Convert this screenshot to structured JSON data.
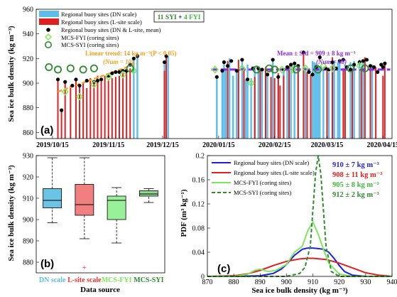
{
  "colors": {
    "dn": "#5bbde8",
    "lsite": "#e02020",
    "mean": "#000000",
    "fyi": "#7fe85a",
    "syi": "#2e8b2e",
    "trend": "#f5a020",
    "overall": "#8a2be2",
    "fyi_text": "#3cb83c"
  },
  "panel_a": {
    "label": "(a)",
    "ylabel": "Sea ice bulk density (kg m⁻³)",
    "yticks": [
      "860",
      "880",
      "900",
      "920",
      "940",
      "960"
    ],
    "xticks": [
      "2019/10/15",
      "2019/11/15",
      "2019/12/15",
      "2020/01/15",
      "2020/02/15",
      "2020/03/15",
      "2020/04/15"
    ],
    "legend": [
      "Regional buoy sites (DN scale)",
      "Regional buoy sites (L-site scale)",
      "Regional buoy sites (DN & L-site, mean)",
      "MCS-FYI (coring sites)",
      "MCS-SYI (coring sites)"
    ],
    "box_label": {
      "syi": "11 SYI",
      "plus": " + ",
      "fyi": "4 FYI"
    },
    "trend_text": "Linear trend: 14 kg m⁻³(P < 0.05)",
    "trend_num": "(Num = 10)",
    "mean_text": "Mean ± Std = 909 ± 8 kg m⁻³",
    "mean_num": "(Num = 68)"
  },
  "panel_b": {
    "label": "(b)",
    "ylabel": "Sea ice bulk density (kg m⁻³)",
    "xlabel": "Data source",
    "yticks": [
      "880",
      "890",
      "900",
      "910",
      "920",
      "930"
    ],
    "categories": [
      "DN scale",
      "L-site scale",
      "MCS-FYI",
      "MCS-SYI"
    ]
  },
  "panel_c": {
    "label": "(c)",
    "ylabel": "PDF (m³ kg⁻¹)",
    "xlabel": "Sea ice bulk density (kg m⁻³)",
    "xticks": [
      "870",
      "880",
      "890",
      "900",
      "910",
      "920",
      "930",
      "940"
    ],
    "yticks": [
      "0",
      "0.04",
      "0.08",
      "0.12",
      "0.16",
      "0.2"
    ],
    "legend": [
      "Regional buoy sites (DN scale)",
      "Regional buoy sites (L-site scale)",
      "MCS-FYI (coring sites)",
      "MCS-SYI (coring sites)"
    ],
    "stats": [
      "910 ± 7 kg m⁻³",
      "908 ± 11 kg m⁻³",
      "905 ± 8 kg m⁻³",
      "912 ± 2 kg m⁻³"
    ]
  },
  "chart_data": [
    {
      "type": "bar",
      "panel": "a",
      "ylim": [
        855,
        960
      ],
      "x_dates": [
        "2019-10-15",
        "2019-11-15",
        "2019-12-15",
        "2020-01-15",
        "2020-02-15",
        "2020-03-15",
        "2020-04-15"
      ],
      "series": [
        {
          "name": "Regional buoy sites (DN scale)",
          "x_days": [
            50,
            52,
            67,
            69,
            96,
            99,
            100,
            101,
            103,
            105,
            107,
            110,
            112,
            113,
            115,
            117,
            119,
            121,
            124,
            127,
            130,
            133,
            135,
            137,
            139,
            141,
            145,
            149,
            150,
            151,
            152,
            153,
            155,
            158,
            160,
            161,
            163,
            164,
            167,
            170,
            172,
            175,
            177,
            182
          ],
          "values": [
            920,
            922,
            918,
            922,
            905,
            910,
            917,
            912,
            920,
            906,
            910,
            919,
            903,
            915,
            904,
            913,
            912,
            911,
            907,
            919,
            905,
            911,
            913,
            915,
            916,
            914,
            913,
            918,
            917,
            916,
            915,
            913,
            911,
            909,
            917,
            918,
            917,
            916,
            915,
            917,
            918,
            919,
            917,
            915
          ]
        },
        {
          "name": "Regional buoy sites (L-site scale)",
          "x_days": [
            8,
            10,
            12,
            15,
            18,
            20,
            22,
            24,
            26,
            28,
            30,
            32,
            34,
            36,
            38,
            40,
            42,
            44,
            46,
            48,
            67,
            68,
            102,
            108,
            111,
            117,
            120,
            123,
            126,
            128,
            130,
            131,
            133,
            136,
            141,
            144,
            146,
            148,
            157,
            160,
            166,
            167,
            171,
            176,
            178,
            181,
            184,
            188,
            189
          ],
          "values": [
            903,
            878,
            900,
            898,
            904,
            897,
            900,
            896,
            904,
            902,
            906,
            903,
            906,
            902,
            904,
            905,
            906,
            908,
            909,
            912,
            910,
            922,
            918,
            919,
            913,
            905,
            911,
            913,
            905,
            904,
            908,
            898,
            906,
            914,
            913,
            925,
            909,
            907,
            913,
            921,
            912,
            911,
            911,
            911,
            921,
            914,
            913,
            906,
            916
          ]
        },
        {
          "name": "Regional buoy sites (DN & L-site, mean)",
          "x_days": [
            8,
            10,
            12,
            16,
            18,
            20,
            24,
            28,
            30,
            32,
            36,
            38,
            40,
            42,
            44,
            46,
            48,
            50,
            52,
            67,
            68,
            96,
            99,
            100,
            102,
            104,
            107,
            110,
            113,
            116,
            119,
            121,
            124,
            127,
            130,
            133,
            135,
            137,
            139,
            141,
            144,
            147,
            149,
            151,
            153,
            156,
            158,
            160,
            162,
            164,
            166,
            168,
            170,
            172,
            175,
            177,
            179,
            181,
            183,
            185,
            187,
            188,
            189
          ],
          "values": [
            903,
            878,
            901,
            898,
            903,
            898,
            902,
            901,
            902,
            903,
            906,
            908,
            909,
            909,
            910,
            910,
            915,
            920,
            922,
            917,
            922,
            905,
            910,
            917,
            914,
            918,
            910,
            919,
            903,
            912,
            912,
            911,
            907,
            919,
            905,
            911,
            913,
            915,
            916,
            914,
            925,
            909,
            907,
            913,
            921,
            912,
            911,
            917,
            912,
            918,
            919,
            913,
            911,
            915,
            917,
            918,
            919,
            914,
            913,
            909,
            915,
            913,
            916
          ]
        },
        {
          "name": "MCS-FYI (coring sites)",
          "x_days": [
            12,
            20,
            28,
            36,
            44,
            50,
            95,
            110,
            115,
            132,
            138,
            145,
            155,
            160,
            175
          ],
          "values": [
            893,
            889,
            899,
            905,
            907,
            910,
            911,
            912,
            900,
            911,
            911,
            912,
            914,
            912,
            914
          ]
        },
        {
          "name": "MCS-SYI (coring sites)",
          "x_days": [
            3,
            8,
            15,
            22,
            28,
            48,
            118,
            125,
            128,
            140,
            152,
            170,
            178
          ],
          "values": [
            913,
            911,
            912,
            911,
            912,
            912,
            911,
            912,
            911,
            911,
            911,
            912,
            912
          ]
        }
      ]
    },
    {
      "type": "box",
      "panel": "b",
      "categories": [
        "DN scale",
        "L-site scale",
        "MCS-FYI",
        "MCS-SYI"
      ],
      "ylim": [
        875,
        930
      ],
      "boxes": [
        {
          "whisker_low": 898.5,
          "q1": 905.5,
          "median": 909,
          "q3": 914.5,
          "whisker_high": 929,
          "outliers": []
        },
        {
          "whisker_low": 891,
          "q1": 902,
          "median": 907,
          "q3": 916.5,
          "whisker_high": 929,
          "outliers": [
            877.5
          ]
        },
        {
          "whisker_low": 889,
          "q1": 900,
          "median": 909,
          "q3": 911,
          "whisker_high": 915,
          "outliers": []
        },
        {
          "whisker_low": 908,
          "q1": 911,
          "median": 912,
          "q3": 913.5,
          "whisker_high": 914.5,
          "outliers": []
        }
      ]
    },
    {
      "type": "line",
      "panel": "c",
      "xlim": [
        870,
        940
      ],
      "ylim": [
        0,
        0.2
      ],
      "series": [
        {
          "name": "Regional buoy sites (DN scale)",
          "x": [
            870,
            880,
            890,
            895,
            898,
            900,
            903,
            906,
            908,
            910,
            912,
            914,
            916,
            918,
            920,
            922,
            925,
            930,
            940
          ],
          "values": [
            0,
            0,
            0.001,
            0.005,
            0.012,
            0.02,
            0.035,
            0.045,
            0.047,
            0.047,
            0.046,
            0.045,
            0.04,
            0.03,
            0.018,
            0.008,
            0.002,
            0,
            0
          ]
        },
        {
          "name": "Regional buoy sites (L-site scale)",
          "x": [
            870,
            880,
            885,
            890,
            895,
            900,
            905,
            908,
            910,
            915,
            920,
            925,
            930,
            935,
            940
          ],
          "values": [
            0,
            0.001,
            0.004,
            0.01,
            0.018,
            0.025,
            0.029,
            0.03,
            0.03,
            0.028,
            0.022,
            0.014,
            0.006,
            0.002,
            0
          ]
        },
        {
          "name": "MCS-FYI (coring sites)",
          "x": [
            870,
            880,
            885,
            888,
            890,
            893,
            896,
            900,
            903,
            906,
            908,
            910,
            912,
            914,
            916,
            920,
            925,
            930,
            940
          ],
          "values": [
            0,
            0,
            0.003,
            0.01,
            0.012,
            0.008,
            0.01,
            0.02,
            0.04,
            0.05,
            0.075,
            0.09,
            0.07,
            0.045,
            0.022,
            0.004,
            0,
            0,
            0
          ]
        },
        {
          "name": "MCS-SYI (coring sites)",
          "x": [
            870,
            900,
            905,
            907,
            909,
            910,
            911,
            912,
            913,
            914,
            915,
            917,
            920,
            940
          ],
          "values": [
            0,
            0,
            0.005,
            0.015,
            0.05,
            0.11,
            0.17,
            0.2,
            0.17,
            0.11,
            0.05,
            0.008,
            0,
            0
          ]
        }
      ]
    }
  ]
}
